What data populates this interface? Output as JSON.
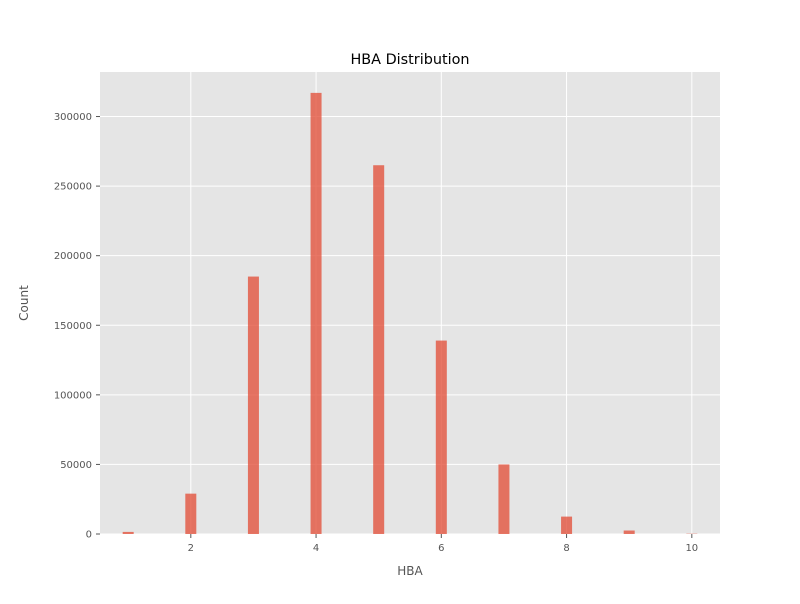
{
  "chart_data": {
    "type": "bar",
    "title": "HBA Distribution",
    "xlabel": "HBA",
    "ylabel": "Count",
    "x": [
      1,
      2,
      3,
      4,
      5,
      6,
      7,
      8,
      9,
      10
    ],
    "values": [
      1500,
      29000,
      185000,
      317000,
      265000,
      139000,
      50000,
      12500,
      2500,
      200
    ],
    "xlim": [
      0.55,
      10.45
    ],
    "ylim": [
      0,
      332000
    ],
    "xticks": [
      2,
      4,
      6,
      8,
      10
    ],
    "yticks": [
      0,
      50000,
      100000,
      150000,
      200000,
      250000,
      300000
    ],
    "grid": true,
    "colors": {
      "bar": "#e24a33",
      "plot_background": "#e5e5e5",
      "grid": "#ffffff"
    }
  }
}
